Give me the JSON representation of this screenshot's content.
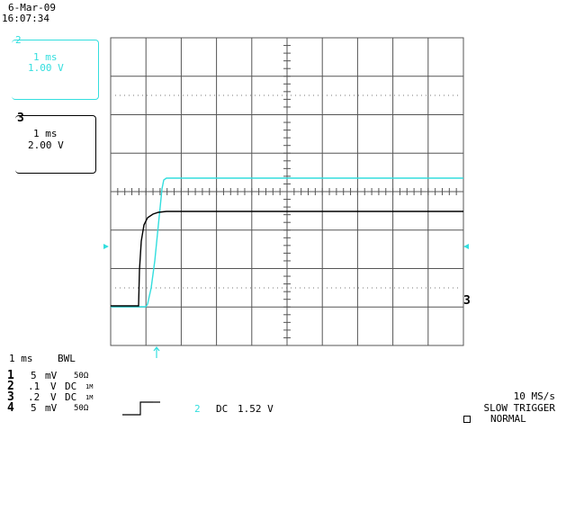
{
  "header": {
    "date": "6-Mar-09",
    "time": "16:07:34"
  },
  "channel_boxes": [
    {
      "id": "2",
      "time_div": "1 ms",
      "volts_div": "1.00 V",
      "color": "#33dede"
    },
    {
      "id": "3",
      "time_div": "1 ms",
      "volts_div": "2.00 V",
      "color": "#000000"
    }
  ],
  "markers": {
    "ref_right": "3"
  },
  "bottom_left": {
    "timebase": "1 ms",
    "bwl": "BWL",
    "channels": [
      {
        "num": "1",
        "scale": "5",
        "unit": "mV",
        "coupling": "",
        "impedance": "50Ω"
      },
      {
        "num": "2",
        "scale": ".1",
        "unit": "V",
        "coupling": "DC",
        "impedance": "1M"
      },
      {
        "num": "3",
        "scale": ".2",
        "unit": "V",
        "coupling": "DC",
        "impedance": "1M"
      },
      {
        "num": "4",
        "scale": "5",
        "unit": "mV",
        "coupling": "",
        "impedance": "50Ω"
      }
    ]
  },
  "trigger_info": {
    "channel": "2",
    "coupling": "DC",
    "level": "1.52 V"
  },
  "bottom_right": {
    "sample_rate": "10 MS/s",
    "mode": "SLOW TRIGGER",
    "trigger_state": "NORMAL"
  },
  "colors": {
    "trace_cyan": "#33dede",
    "grid": "#555555",
    "background": "#ffffff"
  }
}
